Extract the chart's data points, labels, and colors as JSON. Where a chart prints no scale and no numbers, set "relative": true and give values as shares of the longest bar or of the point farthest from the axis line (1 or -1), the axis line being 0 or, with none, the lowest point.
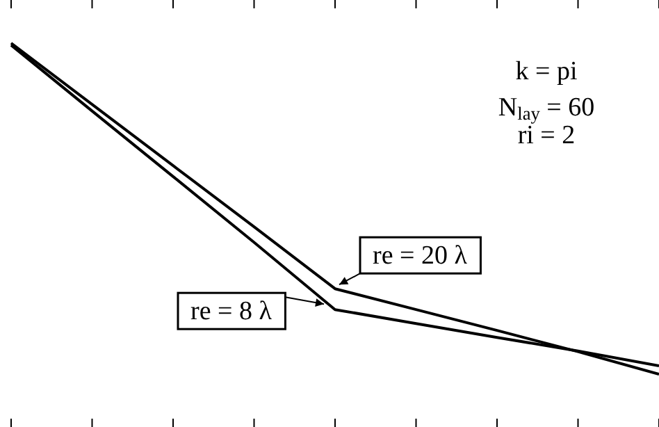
{
  "chart_data": {
    "type": "line",
    "relative": true,
    "categories": [
      null,
      null,
      null,
      null,
      null,
      null,
      null,
      null,
      null
    ],
    "series": [
      {
        "name": "re = 20 λ",
        "color": "#000000",
        "values": [
          1,
          0.815,
          0.63,
          0.445,
          0.258,
          0.195,
          0.132,
          0.068,
          0
        ]
      },
      {
        "name": "re = 8 λ",
        "color": "#000000",
        "values": [
          0.994,
          0.795,
          0.597,
          0.398,
          0.195,
          0.153,
          0.111,
          0.07,
          0.025
        ]
      }
    ],
    "annotations": [
      "k = pi",
      "N$_{lay}$ = 60",
      "ri = 2"
    ],
    "marker": "none",
    "line_style": "solid",
    "grid": false
  }
}
